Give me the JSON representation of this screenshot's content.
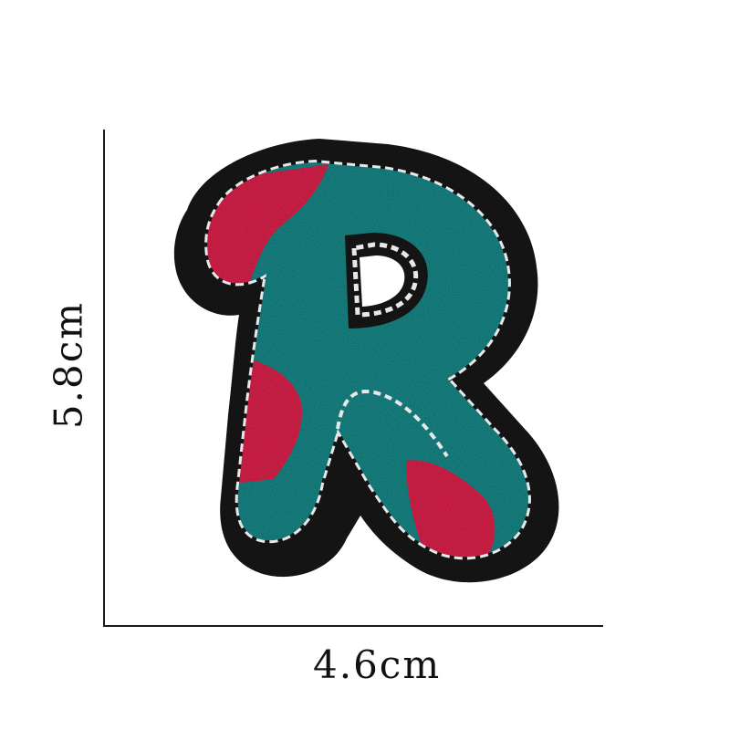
{
  "dimensions": {
    "width_label": "4.6cm",
    "height_label": "5.8cm"
  },
  "patch": {
    "letter": "R",
    "colors": {
      "felt": "#141414",
      "stitch": "#e8e8e8",
      "chenille_teal": "#1f8a8a",
      "chenille_red": "#e0284f"
    }
  }
}
